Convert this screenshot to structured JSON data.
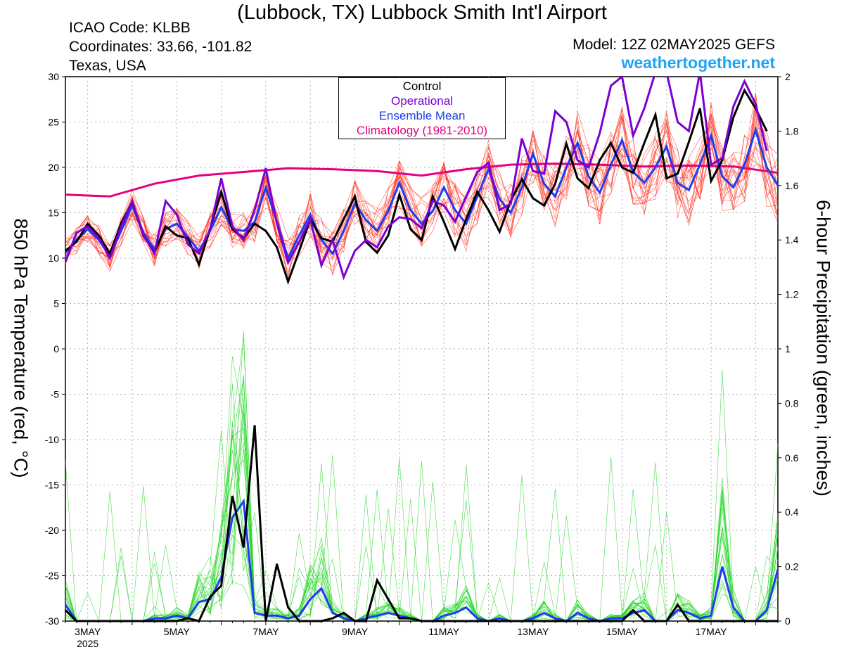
{
  "header": {
    "title": "(Lubbock, TX) Lubbock Smith Int'l Airport",
    "icao": "ICAO Code: KLBB",
    "coordinates": "Coordinates: 33.66, -101.82",
    "region": "Texas, USA",
    "model": "Model: 12Z 02MAY2025 GEFS",
    "site": "weathertogether.net"
  },
  "colors": {
    "control": "#000000",
    "operational": "#7b00d4",
    "ensemble_mean": "#1f3cf0",
    "climatology": "#e5007e",
    "members_temp": "#ff2a1a",
    "members_precip": "#1ed41e",
    "site": "#1fa3f2"
  },
  "chart_data": {
    "type": "line",
    "xlabel": "",
    "ylabel": "850 hPa Temperature (red, °C)",
    "y2label": "6-hour Precipitation (green, inches)",
    "ylim": [
      -30,
      30
    ],
    "y2lim": [
      0,
      2
    ],
    "xlim": [
      0,
      64
    ],
    "x_unit": "6-hour steps from 12Z 02MAY2025",
    "yticks": [
      "30",
      "25",
      "20",
      "15",
      "10",
      "5",
      "0",
      "-5",
      "-10",
      "-15",
      "-20",
      "-25",
      "-30"
    ],
    "y2ticks": [
      "2",
      "1.8",
      "1.6",
      "1.4",
      "1.2",
      "1",
      "0.8",
      "0.6",
      "0.4",
      "0.2",
      "0"
    ],
    "xticks": [
      {
        "x": 2,
        "label": "3MAY",
        "sub": "2025"
      },
      {
        "x": 10,
        "label": "5MAY"
      },
      {
        "x": 18,
        "label": "7MAY"
      },
      {
        "x": 26,
        "label": "9MAY"
      },
      {
        "x": 34,
        "label": "11MAY"
      },
      {
        "x": 42,
        "label": "13MAY"
      },
      {
        "x": 50,
        "label": "15MAY"
      },
      {
        "x": 58,
        "label": "17MAY"
      }
    ],
    "grid": true,
    "legend": {
      "position": "top-center",
      "entries": [
        "Control",
        "Operational",
        "Ensemble Mean",
        "Climatology (1981-2010)"
      ]
    },
    "series": [
      {
        "name": "Control",
        "axis": "temperature",
        "values": [
          10.8,
          11.8,
          13.8,
          12.5,
          10.5,
          13.8,
          16.2,
          12.5,
          10.6,
          13.5,
          12.5,
          12.2,
          9.3,
          13.3,
          17.3,
          13.2,
          12.2,
          13.8,
          13.0,
          11.2,
          7.4,
          10.8,
          14.3,
          12.2,
          11.8,
          14.3,
          16.8,
          11.8,
          10.6,
          12.5,
          17.0,
          13.2,
          12.0,
          16.8,
          14.0,
          11.0,
          14.3,
          17.3,
          15.3,
          12.9,
          16.3,
          18.7,
          16.6,
          15.8,
          18.2,
          22.6,
          18.8,
          17.7,
          20.8,
          22.7,
          20.0,
          19.4,
          22.7,
          25.8,
          18.8,
          19.3,
          22.8,
          26.5,
          18.5,
          20.8,
          25.5,
          28.5,
          26.5,
          24.0
        ]
      },
      {
        "name": "Operational",
        "axis": "temperature",
        "values": [
          9.6,
          12.8,
          13.5,
          12.2,
          10.0,
          13.5,
          16.2,
          12.6,
          10.5,
          16.3,
          14.8,
          11.5,
          10.5,
          13.2,
          18.8,
          13.5,
          12.0,
          15.3,
          19.9,
          13.8,
          9.5,
          11.8,
          14.3,
          9.2,
          12.0,
          7.9,
          10.8,
          12.0,
          11.2,
          13.5,
          14.5,
          14.3,
          13.3,
          16.3,
          15.8,
          14.0,
          16.8,
          19.5,
          20.5,
          15.3,
          16.0,
          23.2,
          19.6,
          19.3,
          26.2,
          25.0,
          20.8,
          20.0,
          23.8,
          29.0,
          30.0,
          23.5,
          26.5,
          30.5,
          30.5,
          25.0,
          24.0,
          30.5,
          20.3,
          21.0,
          26.7,
          29.5,
          27.0,
          21.8
        ]
      },
      {
        "name": "Ensemble Mean",
        "axis": "temperature",
        "values": [
          10.6,
          12.0,
          13.2,
          12.0,
          10.2,
          13.0,
          15.8,
          12.8,
          11.0,
          13.2,
          13.8,
          12.3,
          10.8,
          13.0,
          15.6,
          13.2,
          13.0,
          14.0,
          17.8,
          14.0,
          10.0,
          12.5,
          14.8,
          12.0,
          10.5,
          13.0,
          16.0,
          14.2,
          13.0,
          15.2,
          18.3,
          15.3,
          13.8,
          15.2,
          17.8,
          15.3,
          13.8,
          16.8,
          19.8,
          16.5,
          15.0,
          17.8,
          21.5,
          18.2,
          16.8,
          20.0,
          22.7,
          19.0,
          17.2,
          20.3,
          23.0,
          19.5,
          18.3,
          20.0,
          22.3,
          18.3,
          17.5,
          20.3,
          23.5,
          19.0,
          17.8,
          20.3,
          24.1,
          20.0,
          18.0
        ]
      },
      {
        "name": "Climatology (1981-2010)",
        "axis": "temperature",
        "x": [
          0,
          4,
          8,
          12,
          16,
          20,
          24,
          28,
          32,
          36,
          40,
          44,
          48,
          52,
          56,
          60,
          64
        ],
        "values": [
          17.0,
          16.8,
          18.2,
          19.1,
          19.5,
          19.9,
          19.8,
          19.6,
          19.1,
          19.8,
          20.3,
          20.4,
          20.3,
          20.1,
          20.2,
          20.1,
          19.4
        ]
      },
      {
        "name": "Control",
        "axis": "precipitation",
        "values": [
          0.04,
          0.0,
          0.0,
          0.0,
          0.0,
          0.0,
          0.0,
          0.0,
          0.0,
          0.0,
          0.0,
          0.01,
          0.0,
          0.09,
          0.13,
          0.46,
          0.27,
          0.72,
          0.0,
          0.21,
          0.05,
          0.0,
          0.0,
          0.0,
          0.01,
          0.03,
          0.0,
          0.0,
          0.15,
          0.08,
          0.01,
          0.01,
          0.0,
          0.0,
          0.0,
          0.0,
          0.0,
          0.0,
          0.0,
          0.0,
          0.0,
          0.0,
          0.0,
          0.0,
          0.0,
          0.0,
          0.0,
          0.0,
          0.0,
          0.0,
          0.0,
          0.04,
          0.0,
          0.0,
          0.0,
          0.06,
          0.0,
          0.0,
          0.0,
          0.0,
          0.0,
          0.0,
          0.0,
          0.0,
          0.0
        ]
      },
      {
        "name": "Ensemble Mean",
        "axis": "precipitation",
        "values": [
          0.06,
          0.0,
          0.0,
          0.0,
          0.0,
          0.0,
          0.0,
          0.0,
          0.01,
          0.01,
          0.02,
          0.01,
          0.07,
          0.08,
          0.16,
          0.38,
          0.44,
          0.03,
          0.02,
          0.02,
          0.01,
          0.02,
          0.08,
          0.12,
          0.03,
          0.01,
          0.0,
          0.01,
          0.02,
          0.03,
          0.02,
          0.01,
          0.0,
          0.0,
          0.02,
          0.03,
          0.05,
          0.01,
          0.0,
          0.01,
          0.0,
          0.0,
          0.01,
          0.03,
          0.01,
          0.0,
          0.03,
          0.01,
          0.0,
          0.01,
          0.01,
          0.03,
          0.04,
          0.0,
          0.0,
          0.04,
          0.03,
          0.01,
          0.02,
          0.2,
          0.05,
          0.0,
          0.0,
          0.04,
          0.19
        ]
      }
    ]
  }
}
